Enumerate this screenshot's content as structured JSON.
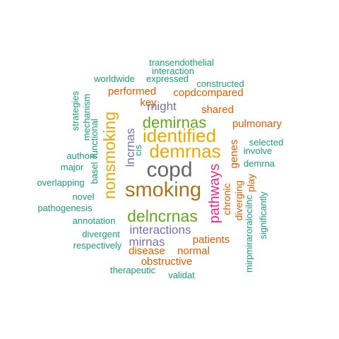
{
  "word_cloud": {
    "colors": {
      "teal": "#1b9e77",
      "orange": "#d95f02",
      "purple": "#7570b3",
      "magenta": "#e7298a",
      "green": "#66a61e",
      "gold": "#e6ab02",
      "brown": "#a6761d",
      "gray": "#666666"
    },
    "words": [
      {
        "text": "copd",
        "color": "#666666",
        "rotated": false
      },
      {
        "text": "smoking",
        "color": "#a6761d",
        "rotated": false
      },
      {
        "text": "nonsmoking",
        "color": "#e6ab02",
        "rotated": true
      },
      {
        "text": "identified",
        "color": "#e6ab02",
        "rotated": false
      },
      {
        "text": "demrnas",
        "color": "#e6ab02",
        "rotated": false
      },
      {
        "text": "demirnas",
        "color": "#66a61e",
        "rotated": false
      },
      {
        "text": "delncrnas",
        "color": "#66a61e",
        "rotated": false
      },
      {
        "text": "pathways",
        "color": "#e7298a",
        "rotated": true
      },
      {
        "text": "lncrnas",
        "color": "#7570b3",
        "rotated": true
      },
      {
        "text": "interactions",
        "color": "#7570b3",
        "rotated": false
      },
      {
        "text": "mirnas",
        "color": "#7570b3",
        "rotated": false
      },
      {
        "text": "might",
        "color": "#7570b3",
        "rotated": false
      },
      {
        "text": "genes",
        "color": "#d95f02",
        "rotated": true
      },
      {
        "text": "copdcompared",
        "color": "#d95f02",
        "rotated": false
      },
      {
        "text": "performed",
        "color": "#d95f02",
        "rotated": false
      },
      {
        "text": "shared",
        "color": "#d95f02",
        "rotated": false
      },
      {
        "text": "pulmonary",
        "color": "#d95f02",
        "rotated": false
      },
      {
        "text": "key",
        "color": "#d95f02",
        "rotated": false
      },
      {
        "text": "patients",
        "color": "#d95f02",
        "rotated": false
      },
      {
        "text": "normal",
        "color": "#d95f02",
        "rotated": false
      },
      {
        "text": "disease",
        "color": "#d95f02",
        "rotated": false
      },
      {
        "text": "obstructive",
        "color": "#d95f02",
        "rotated": false
      },
      {
        "text": "chronic",
        "color": "#d95f02",
        "rotated": true
      },
      {
        "text": "diverging",
        "color": "#d95f02",
        "rotated": true
      },
      {
        "text": "play",
        "color": "#d95f02",
        "rotated": true
      },
      {
        "text": "transendothelial",
        "color": "#1b9e77",
        "rotated": false
      },
      {
        "text": "interaction",
        "color": "#1b9e77",
        "rotated": false
      },
      {
        "text": "worldwide",
        "color": "#1b9e77",
        "rotated": false
      },
      {
        "text": "expressed",
        "color": "#1b9e77",
        "rotated": false
      },
      {
        "text": "constructed",
        "color": "#1b9e77",
        "rotated": false
      },
      {
        "text": "strategies",
        "color": "#1b9e77",
        "rotated": true
      },
      {
        "text": "mechanism",
        "color": "#1b9e77",
        "rotated": true
      },
      {
        "text": "functional",
        "color": "#1b9e77",
        "rotated": true
      },
      {
        "text": "authors",
        "color": "#1b9e77",
        "rotated": false
      },
      {
        "text": "major",
        "color": "#1b9e77",
        "rotated": false
      },
      {
        "text": "basel",
        "color": "#1b9e77",
        "rotated": true
      },
      {
        "text": "cis",
        "color": "#1b9e77",
        "rotated": true
      },
      {
        "text": "overlapping",
        "color": "#1b9e77",
        "rotated": false
      },
      {
        "text": "novel",
        "color": "#1b9e77",
        "rotated": false
      },
      {
        "text": "pathogenesis",
        "color": "#1b9e77",
        "rotated": false
      },
      {
        "text": "annotation",
        "color": "#1b9e77",
        "rotated": false
      },
      {
        "text": "divergent",
        "color": "#1b9e77",
        "rotated": false
      },
      {
        "text": "respectively",
        "color": "#1b9e77",
        "rotated": false
      },
      {
        "text": "therapeutic",
        "color": "#1b9e77",
        "rotated": false
      },
      {
        "text": "validat",
        "color": "#1b9e77",
        "rotated": false
      },
      {
        "text": "selected",
        "color": "#1b9e77",
        "rotated": false
      },
      {
        "text": "involve",
        "color": "#1b9e77",
        "rotated": false
      },
      {
        "text": "demrna",
        "color": "#1b9e77",
        "rotated": false
      },
      {
        "text": "mirpmiraroralocilnc",
        "color": "#1b9e77",
        "rotated": true
      },
      {
        "text": "significantly",
        "color": "#1b9e77",
        "rotated": true
      }
    ]
  }
}
